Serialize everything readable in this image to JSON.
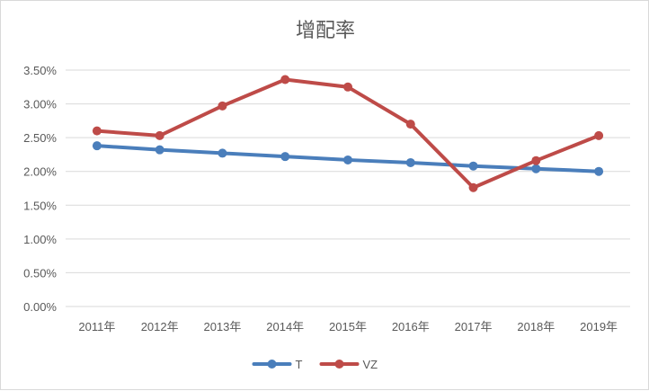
{
  "chart_data": {
    "type": "line",
    "title": "增配率",
    "xlabel": "",
    "ylabel": "",
    "categories": [
      "2011年",
      "2012年",
      "2013年",
      "2014年",
      "2015年",
      "2016年",
      "2017年",
      "2018年",
      "2019年"
    ],
    "y_ticks": [
      "0.00%",
      "0.50%",
      "1.00%",
      "1.50%",
      "2.00%",
      "2.50%",
      "3.00%",
      "3.50%"
    ],
    "ylim": [
      0,
      3.5
    ],
    "grid": true,
    "legend_position": "bottom",
    "series": [
      {
        "name": "T",
        "color": "#4a7ebb",
        "values": [
          2.38,
          2.32,
          2.27,
          2.22,
          2.17,
          2.13,
          2.08,
          2.04,
          2.0
        ]
      },
      {
        "name": "VZ",
        "color": "#be4b48",
        "values": [
          2.6,
          2.53,
          2.97,
          3.36,
          3.25,
          2.7,
          1.76,
          2.16,
          2.53
        ]
      }
    ]
  }
}
